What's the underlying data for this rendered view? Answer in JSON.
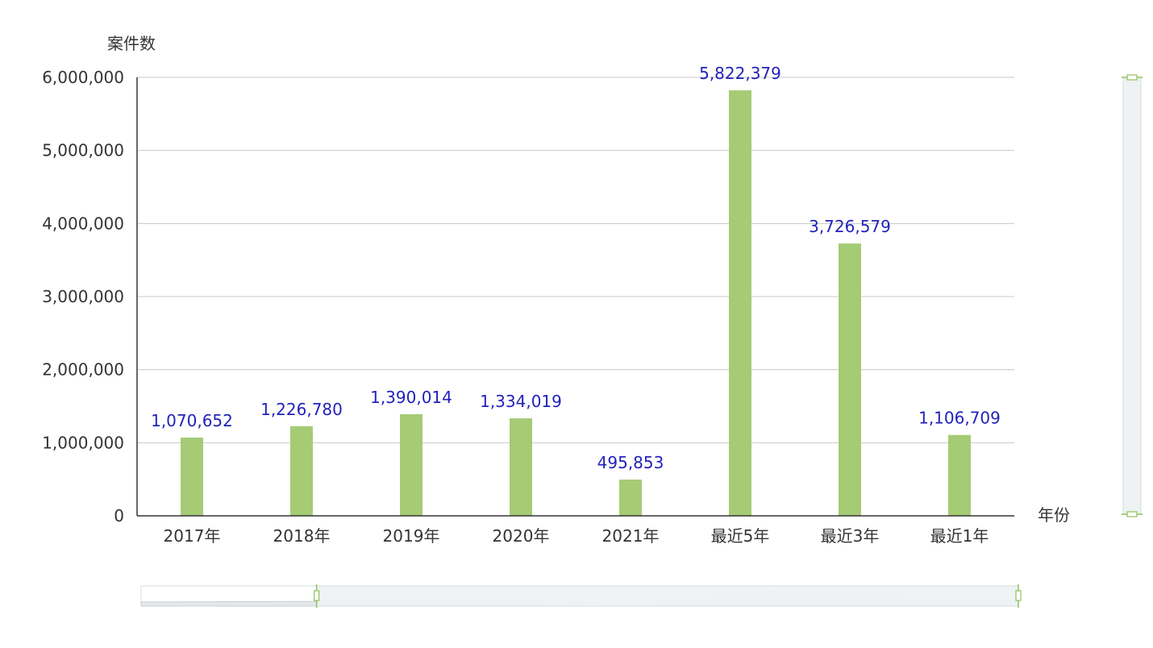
{
  "chart_data": {
    "type": "bar",
    "categories": [
      "2017年",
      "2018年",
      "2019年",
      "2020年",
      "2021年",
      "最近5年",
      "最近3年",
      "最近1年"
    ],
    "values": [
      1070652,
      1226780,
      1390014,
      1334019,
      495853,
      5822379,
      3726579,
      1106709
    ],
    "value_labels": [
      "1,070,652",
      "1,226,780",
      "1,390,014",
      "1,334,019",
      "495,853",
      "5,822,379",
      "3,726,579",
      "1,106,709"
    ],
    "ylabel": "案件数",
    "xlabel": "年份",
    "ylim": [
      0,
      6000000
    ],
    "yticks": [
      0,
      1000000,
      2000000,
      3000000,
      4000000,
      5000000,
      6000000
    ],
    "ytick_labels": [
      "0",
      "1,000,000",
      "2,000,000",
      "3,000,000",
      "4,000,000",
      "5,000,000",
      "6,000,000"
    ],
    "grid": true,
    "legend": "none",
    "data_zoom": {
      "horizontal_range": [
        0.2,
        1.0
      ],
      "vertical_range": [
        0,
        1.0
      ]
    },
    "colors": {
      "bar": "#a5cb75",
      "data_label": "#2222bb",
      "grid": "#c8c8c8",
      "axis": "#333333",
      "zoom_border": "#d6dcdc",
      "zoom_fill": "#eef2f2",
      "zoom_handle": "#8fc15c"
    }
  }
}
